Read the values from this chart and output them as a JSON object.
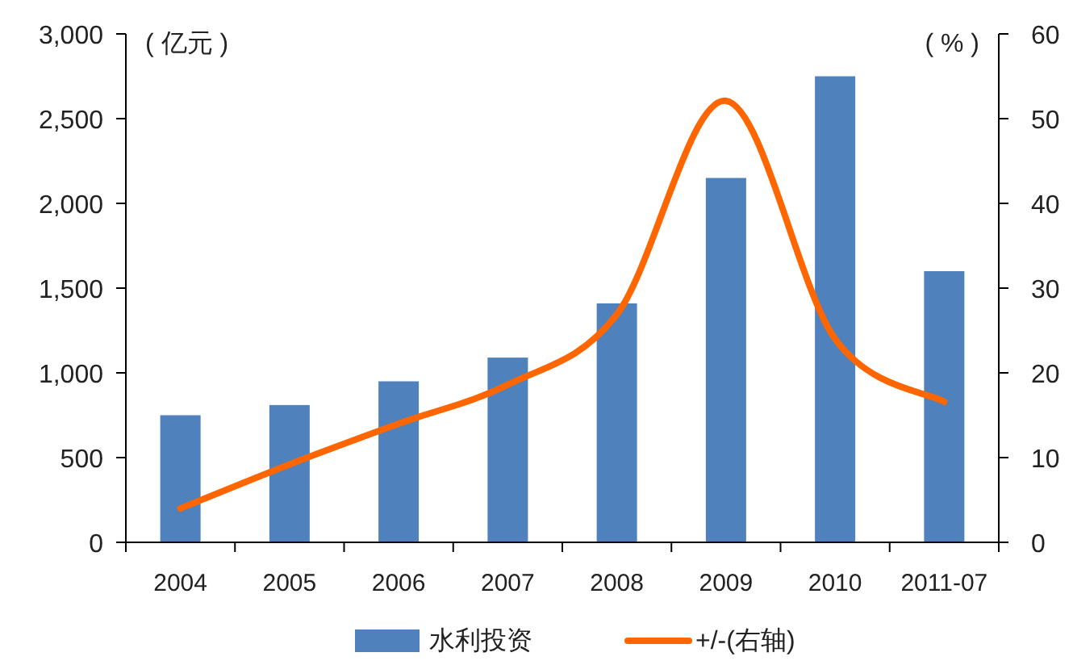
{
  "chart_data": {
    "type": "bar",
    "categories": [
      "2004",
      "2005",
      "2006",
      "2007",
      "2008",
      "2009",
      "2010",
      "2011-07"
    ],
    "ylabel": "( 亿元 )",
    "y2label": "( % )",
    "series": [
      {
        "name": "水利投资",
        "color": "#4f81bd",
        "values": [
          750,
          810,
          950,
          1090,
          1410,
          2150,
          2750,
          1600
        ]
      },
      {
        "name": "+/-(右轴)",
        "type": "line",
        "axis": "y2",
        "color": "#ff6600",
        "values": [
          4.0,
          9.2,
          14.0,
          18.6,
          26.9,
          52.1,
          24,
          16.6
        ]
      }
    ],
    "ylim": [
      0,
      3000
    ],
    "yticks": [
      0,
      {
        "value": 500,
        "label": "500"
      },
      {
        "value": 1000,
        "label": "1,000"
      },
      {
        "value": 1500,
        "label": "1,500"
      },
      {
        "value": 2000,
        "label": "2,000"
      },
      {
        "value": 2500,
        "label": "2,500"
      },
      {
        "value": 3000,
        "label": "3,000"
      }
    ],
    "y2lim": [
      0,
      60
    ],
    "y2ticks": [
      0,
      10,
      20,
      30,
      40,
      50,
      60
    ],
    "legend": "bottom",
    "grid": false,
    "marker": "none",
    "line_style": "solid"
  }
}
